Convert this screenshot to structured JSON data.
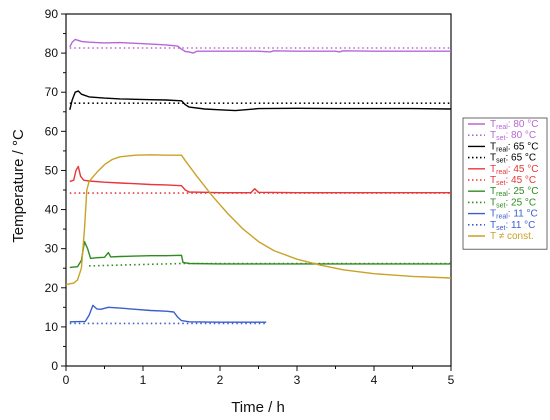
{
  "chart_data": {
    "type": "line",
    "title": "",
    "xlabel": "Time / h",
    "ylabel": "Temperature / °C",
    "xlim": [
      0,
      5
    ],
    "ylim": [
      0,
      90
    ],
    "x_ticks": [
      "0",
      "1",
      "2",
      "3",
      "4",
      "5"
    ],
    "y_ticks": [
      "0",
      "10",
      "20",
      "30",
      "40",
      "50",
      "60",
      "70",
      "80",
      "90"
    ],
    "grid": false,
    "legend_position": "right",
    "series": [
      {
        "name": "T_real: 80 °C",
        "label_base": "T",
        "label_sub": "real",
        "label_rest": ": 80 °C",
        "color": "#b667d6",
        "dash": "solid",
        "points": [
          [
            0.05,
            81.6
          ],
          [
            0.08,
            82.8
          ],
          [
            0.12,
            83.5
          ],
          [
            0.2,
            83.0
          ],
          [
            0.3,
            82.8
          ],
          [
            0.5,
            82.6
          ],
          [
            0.7,
            82.7
          ],
          [
            0.9,
            82.5
          ],
          [
            1.1,
            82.3
          ],
          [
            1.3,
            82.1
          ],
          [
            1.45,
            81.8
          ],
          [
            1.5,
            81.0
          ],
          [
            1.55,
            80.4
          ],
          [
            1.6,
            80.3
          ],
          [
            1.65,
            80.0
          ],
          [
            1.7,
            80.5
          ],
          [
            1.8,
            80.5
          ],
          [
            2.0,
            80.5
          ],
          [
            2.5,
            80.5
          ],
          [
            2.65,
            80.3
          ],
          [
            2.7,
            80.6
          ],
          [
            3.0,
            80.5
          ],
          [
            3.5,
            80.5
          ],
          [
            3.55,
            80.3
          ],
          [
            3.6,
            80.6
          ],
          [
            4.0,
            80.5
          ],
          [
            4.5,
            80.5
          ],
          [
            5.0,
            80.5
          ]
        ]
      },
      {
        "name": "T_set: 80 °C",
        "label_base": "T",
        "label_sub": "set",
        "label_rest": ": 80 °C",
        "color": "#b667d6",
        "dash": "dotted",
        "points": [
          [
            0.05,
            81.3
          ],
          [
            5.0,
            81.3
          ]
        ]
      },
      {
        "name": "T_real: 65 °C",
        "label_base": "T",
        "label_sub": "real",
        "label_rest": ": 65 °C",
        "color": "#000000",
        "dash": "solid",
        "points": [
          [
            0.05,
            65.5
          ],
          [
            0.08,
            68.0
          ],
          [
            0.12,
            70.0
          ],
          [
            0.16,
            70.3
          ],
          [
            0.2,
            69.5
          ],
          [
            0.3,
            68.8
          ],
          [
            0.5,
            68.5
          ],
          [
            0.7,
            68.3
          ],
          [
            0.9,
            68.2
          ],
          [
            1.1,
            68.1
          ],
          [
            1.3,
            68.0
          ],
          [
            1.5,
            67.8
          ],
          [
            1.55,
            66.8
          ],
          [
            1.6,
            66.2
          ],
          [
            1.8,
            65.7
          ],
          [
            2.0,
            65.5
          ],
          [
            2.2,
            65.3
          ],
          [
            2.5,
            65.8
          ],
          [
            3.0,
            65.9
          ],
          [
            3.5,
            65.8
          ],
          [
            4.0,
            65.8
          ],
          [
            4.5,
            65.8
          ],
          [
            5.0,
            65.7
          ]
        ]
      },
      {
        "name": "T_set: 65 °C",
        "label_base": "T",
        "label_sub": "set",
        "label_rest": ": 65 °C",
        "color": "#000000",
        "dash": "dotted",
        "points": [
          [
            0.05,
            67.2
          ],
          [
            5.0,
            67.2
          ]
        ]
      },
      {
        "name": "T_real: 45 °C",
        "label_base": "T",
        "label_sub": "real",
        "label_rest": ": 45 °C",
        "color": "#e8363a",
        "dash": "solid",
        "points": [
          [
            0.05,
            47.2
          ],
          [
            0.1,
            47.5
          ],
          [
            0.13,
            50.0
          ],
          [
            0.16,
            51.0
          ],
          [
            0.19,
            48.5
          ],
          [
            0.23,
            47.5
          ],
          [
            0.3,
            47.3
          ],
          [
            0.5,
            47.0
          ],
          [
            0.7,
            46.8
          ],
          [
            0.9,
            46.6
          ],
          [
            1.1,
            46.4
          ],
          [
            1.3,
            46.3
          ],
          [
            1.5,
            46.1
          ],
          [
            1.55,
            45.0
          ],
          [
            1.6,
            44.5
          ],
          [
            1.8,
            44.4
          ],
          [
            2.0,
            44.3
          ],
          [
            2.4,
            44.3
          ],
          [
            2.45,
            45.3
          ],
          [
            2.5,
            44.4
          ],
          [
            3.0,
            44.3
          ],
          [
            3.5,
            44.3
          ],
          [
            4.0,
            44.3
          ],
          [
            4.5,
            44.3
          ],
          [
            5.0,
            44.3
          ]
        ]
      },
      {
        "name": "T_set: 45 °C",
        "label_base": "T",
        "label_sub": "set",
        "label_rest": ": 45 °C",
        "color": "#e8363a",
        "dash": "dotted",
        "points": [
          [
            0.05,
            44.2
          ],
          [
            5.0,
            44.2
          ]
        ]
      },
      {
        "name": "T_real: 25 °C",
        "label_base": "T",
        "label_sub": "real",
        "label_rest": ": 25 °C",
        "color": "#2e8b1f",
        "dash": "solid",
        "points": [
          [
            0.05,
            25.2
          ],
          [
            0.15,
            25.4
          ],
          [
            0.2,
            27.0
          ],
          [
            0.24,
            31.8
          ],
          [
            0.28,
            30.0
          ],
          [
            0.32,
            27.5
          ],
          [
            0.4,
            27.7
          ],
          [
            0.5,
            27.8
          ],
          [
            0.55,
            29.0
          ],
          [
            0.58,
            27.9
          ],
          [
            0.7,
            28.0
          ],
          [
            0.9,
            28.1
          ],
          [
            1.1,
            28.2
          ],
          [
            1.3,
            28.2
          ],
          [
            1.5,
            28.3
          ],
          [
            1.52,
            26.5
          ],
          [
            1.6,
            26.2
          ],
          [
            2.0,
            26.1
          ],
          [
            3.0,
            26.1
          ],
          [
            4.0,
            26.1
          ],
          [
            5.0,
            26.1
          ]
        ]
      },
      {
        "name": "T_set: 25 °C",
        "label_base": "T",
        "label_sub": "set",
        "label_rest": ": 25 °C",
        "color": "#2e8b1f",
        "dash": "dotted",
        "points": [
          [
            0.3,
            25.6
          ],
          [
            1.5,
            26.2
          ],
          [
            5.0,
            26.2
          ]
        ]
      },
      {
        "name": "T_real: 11 °C",
        "label_base": "T",
        "label_sub": "real",
        "label_rest": ": 11 °C",
        "color": "#3a5fcd",
        "dash": "solid",
        "points": [
          [
            0.05,
            11.3
          ],
          [
            0.25,
            11.4
          ],
          [
            0.3,
            13.0
          ],
          [
            0.35,
            15.5
          ],
          [
            0.4,
            14.6
          ],
          [
            0.45,
            14.5
          ],
          [
            0.55,
            15.0
          ],
          [
            0.7,
            14.8
          ],
          [
            0.9,
            14.5
          ],
          [
            1.1,
            14.2
          ],
          [
            1.3,
            14.0
          ],
          [
            1.4,
            13.8
          ],
          [
            1.45,
            12.5
          ],
          [
            1.5,
            11.6
          ],
          [
            1.6,
            11.3
          ],
          [
            2.0,
            11.2
          ],
          [
            2.6,
            11.2
          ]
        ]
      },
      {
        "name": "T_set: 11 °C",
        "label_base": "T",
        "label_sub": "set",
        "label_rest": ": 11 °C",
        "color": "#3a5fcd",
        "dash": "dotted",
        "points": [
          [
            0.05,
            10.9
          ],
          [
            2.6,
            10.9
          ]
        ]
      },
      {
        "name": "T ≠ const.",
        "label_base": "T ≠ const.",
        "label_sub": "",
        "label_rest": "",
        "color": "#c9a227",
        "dash": "solid",
        "points": [
          [
            0.0,
            20.8
          ],
          [
            0.1,
            21.2
          ],
          [
            0.15,
            22.0
          ],
          [
            0.2,
            25.0
          ],
          [
            0.24,
            35.0
          ],
          [
            0.27,
            45.0
          ],
          [
            0.3,
            47.2
          ],
          [
            0.4,
            49.5
          ],
          [
            0.5,
            51.5
          ],
          [
            0.6,
            52.8
          ],
          [
            0.7,
            53.5
          ],
          [
            0.9,
            53.9
          ],
          [
            1.1,
            54.0
          ],
          [
            1.3,
            53.9
          ],
          [
            1.5,
            53.9
          ],
          [
            1.55,
            52.5
          ],
          [
            1.7,
            48.5
          ],
          [
            1.9,
            43.5
          ],
          [
            2.1,
            39.0
          ],
          [
            2.3,
            35.0
          ],
          [
            2.5,
            31.8
          ],
          [
            2.7,
            29.5
          ],
          [
            3.0,
            27.3
          ],
          [
            3.3,
            25.8
          ],
          [
            3.6,
            24.6
          ],
          [
            4.0,
            23.6
          ],
          [
            4.5,
            22.9
          ],
          [
            5.0,
            22.5
          ]
        ]
      }
    ]
  }
}
